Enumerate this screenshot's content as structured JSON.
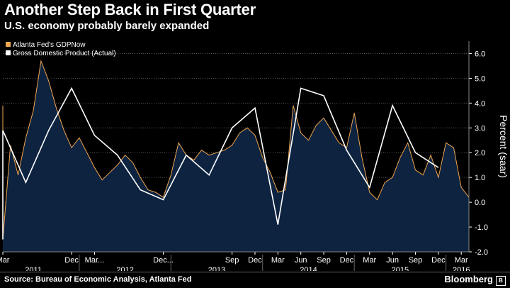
{
  "header": {
    "title": "Another Step Back in First Quarter",
    "subtitle": "U.S. economy probably barely expanded"
  },
  "footer": {
    "source": "Source: Bureau of Economic Analysis, Atlanta Fed",
    "brand": "Bloomberg",
    "brand_mark": "B"
  },
  "colors": {
    "gdpnow": "#f0a650",
    "area": "#0d2340",
    "actual": "#ffffff",
    "grid": "#555555"
  },
  "chart_data": {
    "type": "area",
    "ylabel": "Percent (saar)",
    "ylim": [
      -2.0,
      6.5
    ],
    "yticks": [
      "6.0",
      "5.0",
      "4.0",
      "3.0",
      "2.0",
      "1.0",
      "0.0",
      "-1.0",
      "-2.0"
    ],
    "x_range": [
      "2011-03",
      "2016-04"
    ],
    "x_ticks": [
      {
        "label": "Mar",
        "date": "2011-03"
      },
      {
        "label": "Dec",
        "date": "2011-12"
      },
      {
        "label": "Mar...",
        "date": "2012-03"
      },
      {
        "label": "Dec...",
        "date": "2012-12"
      },
      {
        "label": "Sep",
        "date": "2013-09"
      },
      {
        "label": "Dec",
        "date": "2013-12"
      },
      {
        "label": "Mar",
        "date": "2014-03"
      },
      {
        "label": "Jun",
        "date": "2014-06"
      },
      {
        "label": "Sep",
        "date": "2014-09"
      },
      {
        "label": "Dec",
        "date": "2014-12"
      },
      {
        "label": "Mar",
        "date": "2015-03"
      },
      {
        "label": "Jun",
        "date": "2015-06"
      },
      {
        "label": "Sep",
        "date": "2015-09"
      },
      {
        "label": "Dec",
        "date": "2015-12"
      },
      {
        "label": "Mar",
        "date": "2016-03"
      }
    ],
    "year_labels": [
      {
        "label": "2011",
        "date": "2011-07"
      },
      {
        "label": "2012",
        "date": "2012-07"
      },
      {
        "label": "2013",
        "date": "2013-07"
      },
      {
        "label": "2014",
        "date": "2014-07"
      },
      {
        "label": "2015",
        "date": "2015-07"
      },
      {
        "label": "2016",
        "date": "2016-03"
      }
    ],
    "series": [
      {
        "name": "Atlanta Fed's GDPNow",
        "type": "area",
        "points": [
          [
            "2011-03",
            3.9
          ],
          [
            "2011-03",
            -1.5
          ],
          [
            "2011-04",
            2.3
          ],
          [
            "2011-05",
            1.1
          ],
          [
            "2011-06",
            2.6
          ],
          [
            "2011-07",
            3.7
          ],
          [
            "2011-08",
            5.7
          ],
          [
            "2011-09",
            4.9
          ],
          [
            "2011-10",
            3.8
          ],
          [
            "2011-11",
            2.9
          ],
          [
            "2011-12",
            2.2
          ],
          [
            "2012-01",
            2.6
          ],
          [
            "2012-02",
            2.0
          ],
          [
            "2012-03",
            1.4
          ],
          [
            "2012-04",
            0.9
          ],
          [
            "2012-05",
            1.2
          ],
          [
            "2012-06",
            1.5
          ],
          [
            "2012-07",
            1.9
          ],
          [
            "2012-08",
            1.6
          ],
          [
            "2012-09",
            1.0
          ],
          [
            "2012-10",
            0.5
          ],
          [
            "2012-11",
            0.4
          ],
          [
            "2012-12",
            0.2
          ],
          [
            "2013-01",
            1.1
          ],
          [
            "2013-02",
            2.4
          ],
          [
            "2013-03",
            1.9
          ],
          [
            "2013-04",
            1.7
          ],
          [
            "2013-05",
            2.1
          ],
          [
            "2013-06",
            1.9
          ],
          [
            "2013-07",
            2.0
          ],
          [
            "2013-08",
            2.1
          ],
          [
            "2013-09",
            2.3
          ],
          [
            "2013-10",
            2.8
          ],
          [
            "2013-11",
            3.0
          ],
          [
            "2013-12",
            2.7
          ],
          [
            "2014-01",
            1.8
          ],
          [
            "2014-02",
            1.2
          ],
          [
            "2014-03",
            0.4
          ],
          [
            "2014-04",
            0.5
          ],
          [
            "2014-05",
            3.9
          ],
          [
            "2014-06",
            2.8
          ],
          [
            "2014-07",
            2.5
          ],
          [
            "2014-08",
            3.1
          ],
          [
            "2014-09",
            3.4
          ],
          [
            "2014-10",
            2.9
          ],
          [
            "2014-11",
            2.4
          ],
          [
            "2014-12",
            2.2
          ],
          [
            "2015-01",
            3.6
          ],
          [
            "2015-02",
            1.8
          ],
          [
            "2015-03",
            0.4
          ],
          [
            "2015-04",
            0.1
          ],
          [
            "2015-05",
            0.8
          ],
          [
            "2015-06",
            1.0
          ],
          [
            "2015-07",
            1.8
          ],
          [
            "2015-08",
            2.4
          ],
          [
            "2015-09",
            1.3
          ],
          [
            "2015-10",
            1.1
          ],
          [
            "2015-11",
            1.9
          ],
          [
            "2015-12",
            1.0
          ],
          [
            "2016-01",
            2.4
          ],
          [
            "2016-02",
            2.2
          ],
          [
            "2016-03",
            0.6
          ],
          [
            "2016-04",
            0.2
          ]
        ]
      },
      {
        "name": "Gross Domestic Product (Actual)",
        "type": "line",
        "points": [
          [
            "2011-03",
            -1.5
          ],
          [
            "2011-03",
            2.9
          ],
          [
            "2011-06",
            0.8
          ],
          [
            "2011-09",
            2.9
          ],
          [
            "2011-12",
            4.6
          ],
          [
            "2012-03",
            2.7
          ],
          [
            "2012-06",
            1.9
          ],
          [
            "2012-09",
            0.5
          ],
          [
            "2012-12",
            0.1
          ],
          [
            "2013-03",
            1.9
          ],
          [
            "2013-06",
            1.1
          ],
          [
            "2013-09",
            3.0
          ],
          [
            "2013-12",
            3.8
          ],
          [
            "2014-03",
            -0.9
          ],
          [
            "2014-06",
            4.6
          ],
          [
            "2014-09",
            4.3
          ],
          [
            "2014-12",
            2.1
          ],
          [
            "2015-03",
            0.6
          ],
          [
            "2015-06",
            3.9
          ],
          [
            "2015-09",
            2.0
          ],
          [
            "2015-12",
            1.4
          ]
        ]
      }
    ],
    "legend_position": "top-left"
  }
}
